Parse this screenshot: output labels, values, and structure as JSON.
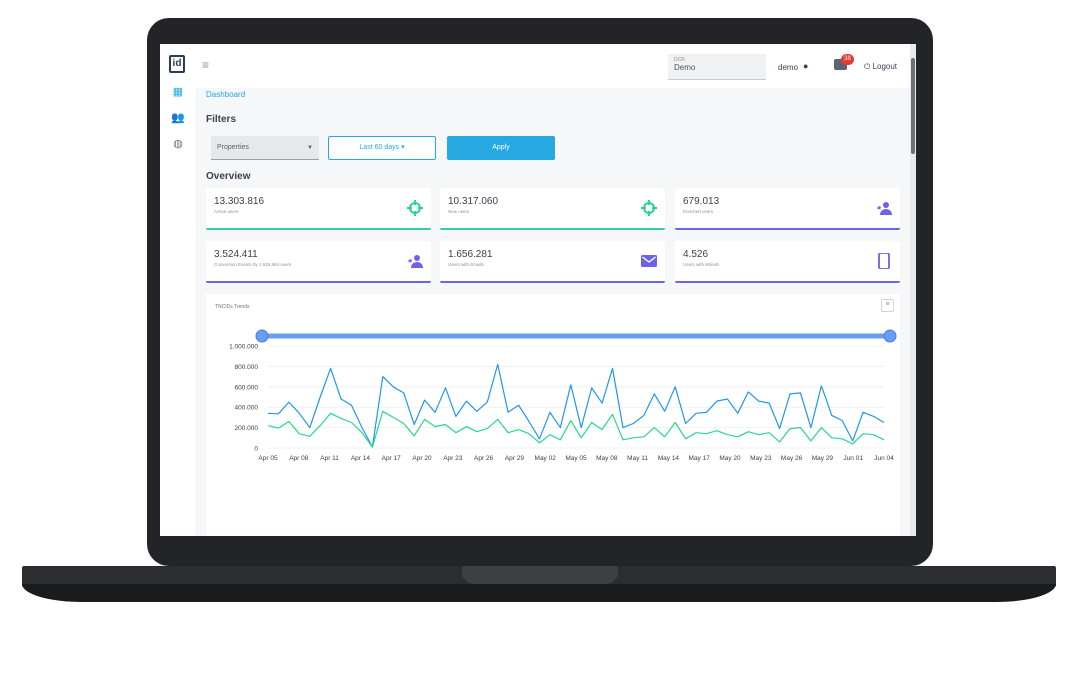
{
  "topbar": {
    "dcr_label": "DCR",
    "dcr_value": "Demo",
    "user_name": "demo",
    "notifications_count": "38",
    "logout_label": "Logout"
  },
  "breadcrumb": "Dashboard",
  "filters": {
    "title": "Filters",
    "properties_placeholder": "Properties",
    "date_range": "Last 60 days",
    "apply_label": "Apply"
  },
  "overview": {
    "title": "Overview",
    "cards": [
      {
        "value": "13.303.816",
        "label": "Active users",
        "icon": "crosshair-icon",
        "accent": "#2ecfa0"
      },
      {
        "value": "10.317.060",
        "label": "New users",
        "icon": "crosshair-icon",
        "accent": "#2ecfa0"
      },
      {
        "value": "679.013",
        "label": "Enriched users",
        "icon": "star-user-icon",
        "accent": "#6c63e8"
      },
      {
        "value": "3.524.411",
        "label": "Conversion Events by 1.625.884 users",
        "icon": "star-user-icon",
        "accent": "#6c63e8"
      },
      {
        "value": "1.656.281",
        "label": "Users with Emails",
        "icon": "mail-icon",
        "accent": "#6c63e8"
      },
      {
        "value": "4.526",
        "label": "Users with Msisdn",
        "icon": "phone-icon",
        "accent": "#6c63e8"
      }
    ]
  },
  "chart_data": {
    "type": "line",
    "title": "TNCIDs Trends",
    "xlabel": "",
    "ylabel": "",
    "ylim": [
      0,
      1000000
    ],
    "yticks": [
      "1.000.000",
      "800.000",
      "600.000",
      "400.000",
      "200.000",
      "0"
    ],
    "ytick_values": [
      1000000,
      800000,
      600000,
      400000,
      200000,
      0
    ],
    "xtick_labels": [
      "Apr 05",
      "Apr 08",
      "Apr 11",
      "Apr 14",
      "Apr 17",
      "Apr 20",
      "Apr 23",
      "Apr 26",
      "Apr 29",
      "May 02",
      "May 05",
      "May 08",
      "May 11",
      "May 14",
      "May 17",
      "May 20",
      "May 23",
      "May 26",
      "May 29",
      "Jun 01",
      "Jun 04"
    ],
    "colors": {
      "series_a": "#2196f3",
      "series_b": "#26d98a",
      "slider": "#6b9cf5"
    },
    "series": [
      {
        "values": [
          340000,
          335000,
          450000,
          340000,
          200000,
          500000,
          780000,
          480000,
          420000,
          200000,
          10000,
          700000,
          600000,
          540000,
          230000,
          470000,
          350000,
          590000,
          310000,
          460000,
          360000,
          450000,
          820000,
          350000,
          420000,
          260000,
          90000,
          350000,
          200000,
          620000,
          200000,
          590000,
          440000,
          780000,
          200000,
          240000,
          320000,
          530000,
          360000,
          600000,
          240000,
          340000,
          350000,
          460000,
          480000,
          340000,
          550000,
          460000,
          440000,
          190000,
          530000,
          540000,
          200000,
          610000,
          320000,
          270000,
          70000,
          350000,
          310000,
          250000
        ]
      },
      {
        "values": [
          220000,
          195000,
          260000,
          140000,
          115000,
          220000,
          340000,
          290000,
          250000,
          150000,
          10000,
          360000,
          300000,
          240000,
          120000,
          280000,
          210000,
          230000,
          150000,
          210000,
          160000,
          190000,
          280000,
          150000,
          180000,
          140000,
          50000,
          130000,
          80000,
          270000,
          100000,
          250000,
          180000,
          330000,
          80000,
          100000,
          110000,
          200000,
          110000,
          250000,
          90000,
          150000,
          140000,
          170000,
          130000,
          110000,
          160000,
          130000,
          150000,
          60000,
          190000,
          200000,
          70000,
          200000,
          100000,
          90000,
          40000,
          140000,
          130000,
          80000
        ]
      }
    ],
    "grid": true,
    "legend": "none",
    "range_slider": true
  }
}
